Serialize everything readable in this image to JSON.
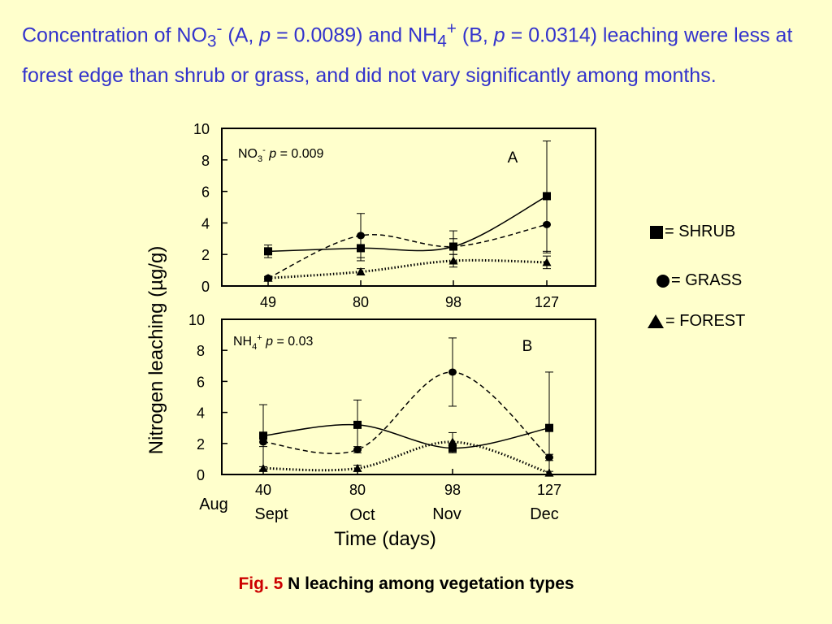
{
  "heading": {
    "part1": "Concentration of NO",
    "sub1": "3",
    "sup1": "-",
    "part2": " (A, ",
    "p_letter": "p",
    "part3": " = 0.0089) and NH",
    "sub2": "4",
    "sup2": "+",
    "part4": " (B, ",
    "p_letter2": "p",
    "part5": " = 0.0314) leaching were less at forest edge than shrub or grass, and did not vary significantly among months."
  },
  "caption": {
    "fig_label": "Fig. 5",
    "text": "N leaching among vegetation types"
  },
  "legend": [
    {
      "symbol": "square",
      "label": "= SHRUB"
    },
    {
      "symbol": "circle",
      "label": "= GRASS"
    },
    {
      "symbol": "triangle",
      "label": "= FOREST"
    }
  ],
  "colors": {
    "heading": "#3333cc",
    "fig_label": "#cc0000",
    "background": "#ffffcc",
    "ink": "#000000"
  },
  "chart_data": [
    {
      "type": "line",
      "panel_letter": "A",
      "annotation": {
        "ion": "NO",
        "sub": "3",
        "sup": "-",
        "p": "p",
        "pval": " = 0.009"
      },
      "x": [
        49,
        80,
        98,
        127
      ],
      "xtick_labels": [
        "49",
        "80",
        "98",
        "127"
      ],
      "ylim": [
        0,
        10
      ],
      "yticks": [
        "0",
        "2",
        "4",
        "6",
        "8",
        "10"
      ],
      "series": [
        {
          "name": "SHRUB",
          "marker": "square",
          "dash": "solid",
          "values": [
            2.2,
            2.4,
            2.5,
            5.7
          ],
          "err": [
            0.4,
            0.8,
            0.5,
            3.5
          ]
        },
        {
          "name": "GRASS",
          "marker": "circle",
          "dash": "dashed",
          "values": [
            0.5,
            3.2,
            2.5,
            3.9
          ],
          "err": [
            0.1,
            1.4,
            1.0,
            1.8
          ]
        },
        {
          "name": "FOREST",
          "marker": "triangle",
          "dash": "dotted",
          "values": [
            0.5,
            0.9,
            1.6,
            1.5
          ],
          "err": [
            0.1,
            0.2,
            0.4,
            0.4
          ]
        }
      ]
    },
    {
      "type": "line",
      "panel_letter": "B",
      "annotation": {
        "ion": "NH",
        "sub": "4",
        "sup": "+",
        "p": "p",
        "pval": " = 0.03"
      },
      "x": [
        40,
        80,
        98,
        127
      ],
      "xtick_labels": [
        "40",
        "80",
        "98",
        "127"
      ],
      "month_labels": [
        "Aug",
        "Sept",
        "Oct",
        "Nov",
        "Dec"
      ],
      "xlabel": "Time (days)",
      "ylim": [
        0,
        10
      ],
      "yticks": [
        "0",
        "2",
        "4",
        "6",
        "8",
        "10"
      ],
      "series": [
        {
          "name": "SHRUB",
          "marker": "square",
          "dash": "solid",
          "values": [
            2.5,
            3.2,
            1.7,
            3.0
          ],
          "err": [
            2.0,
            1.6,
            0.3,
            3.6
          ]
        },
        {
          "name": "GRASS",
          "marker": "circle",
          "dash": "dashed",
          "values": [
            2.1,
            1.6,
            6.6,
            1.1
          ],
          "err": [
            0.3,
            0.2,
            2.2,
            0.2
          ]
        },
        {
          "name": "FOREST",
          "marker": "triangle",
          "dash": "dotted",
          "values": [
            0.4,
            0.4,
            2.1,
            0.1
          ],
          "err": [
            0.1,
            0.2,
            0.6,
            0.1
          ]
        }
      ]
    }
  ],
  "ylabel": "Nitrogen leaching (µg/g)"
}
